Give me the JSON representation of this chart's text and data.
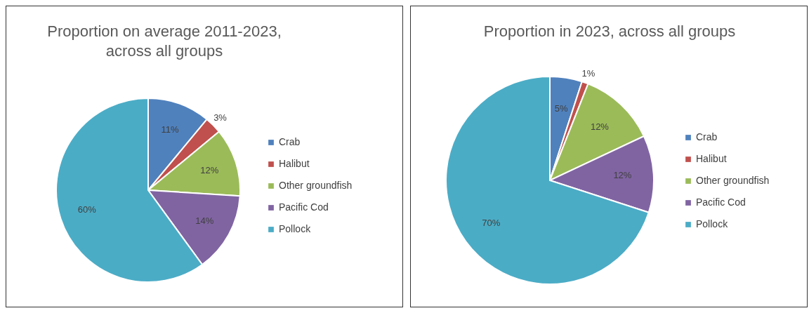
{
  "chart_data": [
    {
      "type": "pie",
      "title": "Proportion on average 2011-2023, across all groups",
      "categories": [
        "Crab",
        "Halibut",
        "Other groundfish",
        "Pacific Cod",
        "Pollock"
      ],
      "values": [
        11,
        3,
        12,
        14,
        60
      ],
      "value_labels": [
        "11%",
        "3%",
        "12%",
        "14%",
        "60%"
      ],
      "colors": [
        "#4f81bd",
        "#c0504d",
        "#9bbb59",
        "#8064a2",
        "#4bacc6"
      ],
      "legend": "right"
    },
    {
      "type": "pie",
      "title": "Proportion in 2023, across all groups",
      "categories": [
        "Crab",
        "Halibut",
        "Other groundfish",
        "Pacific Cod",
        "Pollock"
      ],
      "values": [
        5,
        1,
        12,
        12,
        70
      ],
      "value_labels": [
        "5%",
        "1%",
        "12%",
        "12%",
        "70%"
      ],
      "colors": [
        "#4f81bd",
        "#c0504d",
        "#9bbb59",
        "#8064a2",
        "#4bacc6"
      ],
      "legend": "right"
    }
  ]
}
